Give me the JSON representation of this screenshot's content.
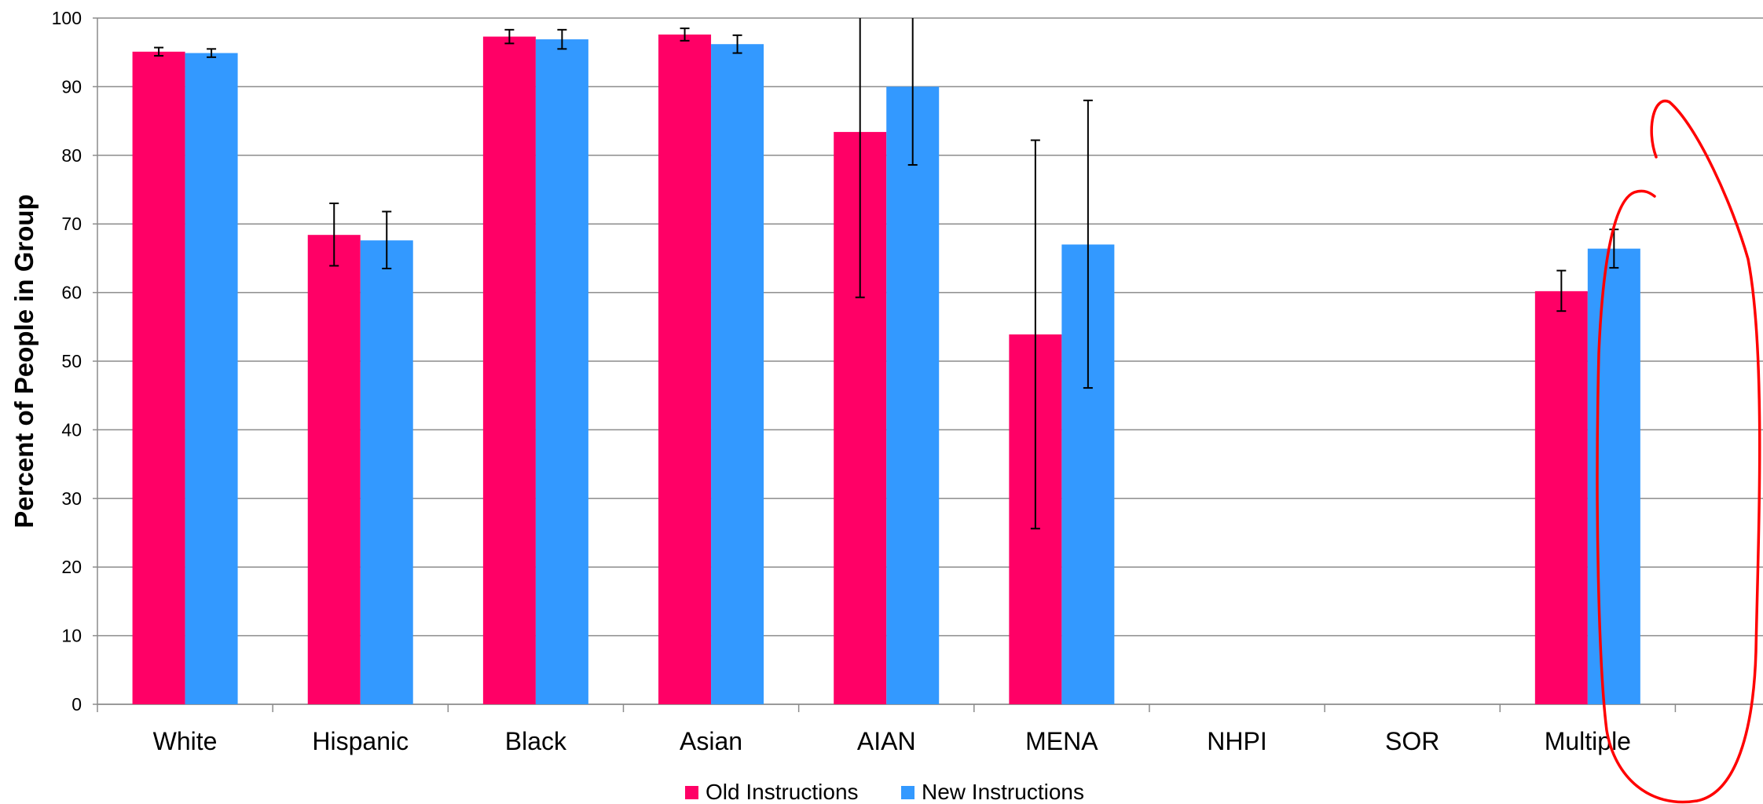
{
  "chart_data": {
    "type": "bar",
    "ylabel": "Percent of People in Group",
    "xlabel": "",
    "ylim": [
      0,
      100
    ],
    "yticks": [
      0,
      10,
      20,
      30,
      40,
      50,
      60,
      70,
      80,
      90,
      100
    ],
    "grid": true,
    "legend_position": "bottom-center",
    "categories": [
      "White",
      "Hispanic",
      "Black",
      "Asian",
      "AIAN",
      "MENA",
      "NHPI",
      "SOR",
      "Multiple"
    ],
    "series": [
      {
        "name": "Old Instructions",
        "color": "#FF0066",
        "values": [
          95.1,
          68.4,
          97.3,
          97.6,
          83.4,
          53.9,
          null,
          null,
          60.2
        ],
        "err_low": [
          94.5,
          63.9,
          96.3,
          96.7,
          59.3,
          25.6,
          null,
          null,
          57.3
        ],
        "err_high": [
          95.7,
          73.0,
          98.3,
          98.5,
          100,
          82.2,
          null,
          null,
          63.2
        ]
      },
      {
        "name": "New Instructions",
        "color": "#3399FF",
        "values": [
          94.9,
          67.6,
          96.9,
          96.2,
          90.0,
          67.0,
          null,
          null,
          66.4
        ],
        "err_low": [
          94.3,
          63.5,
          95.5,
          94.9,
          78.6,
          46.1,
          null,
          null,
          63.6
        ],
        "err_high": [
          95.5,
          71.8,
          98.3,
          97.5,
          100,
          88.0,
          null,
          null,
          69.2
        ]
      }
    ],
    "annotation": {
      "type": "hand-drawn-circle",
      "color": "#FF0000",
      "target": "Multiple"
    }
  }
}
